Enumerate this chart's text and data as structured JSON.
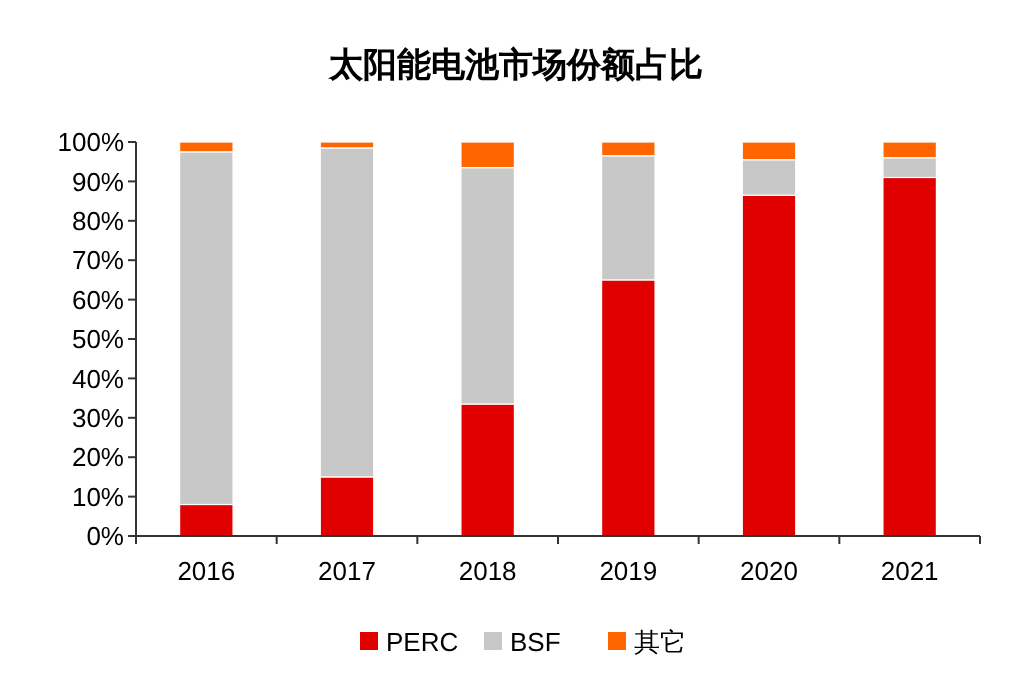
{
  "chart_data": {
    "type": "bar",
    "title": "太阳能电池市场份额占比",
    "stacked": true,
    "categories": [
      "2016",
      "2017",
      "2018",
      "2019",
      "2020",
      "2021"
    ],
    "series": [
      {
        "name": "PERC",
        "color": "#e00000",
        "values": [
          8,
          15,
          33.5,
          65,
          86.5,
          91
        ]
      },
      {
        "name": "BSF",
        "color": "#c8c8c8",
        "values": [
          89.5,
          83.5,
          60,
          31.5,
          9,
          5
        ]
      },
      {
        "name": "其它",
        "color": "#ff6600",
        "values": [
          2.5,
          1.5,
          6.5,
          3.5,
          4.5,
          4
        ]
      }
    ],
    "ylim": [
      0,
      100
    ],
    "yticks": [
      {
        "value": 0,
        "label": "0%"
      },
      {
        "value": 10,
        "label": "10%"
      },
      {
        "value": 20,
        "label": "20%"
      },
      {
        "value": 30,
        "label": "30%"
      },
      {
        "value": 40,
        "label": "40%"
      },
      {
        "value": 50,
        "label": "50%"
      },
      {
        "value": 60,
        "label": "60%"
      },
      {
        "value": 70,
        "label": "70%"
      },
      {
        "value": 80,
        "label": "80%"
      },
      {
        "value": 90,
        "label": "90%"
      },
      {
        "value": 100,
        "label": "100%"
      }
    ],
    "legend": "bottom"
  }
}
